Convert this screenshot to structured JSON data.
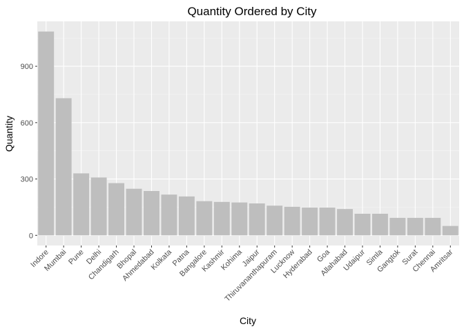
{
  "chart_data": {
    "type": "bar",
    "title": "Quantity Ordered by City",
    "xlabel": "City",
    "ylabel": "Quantity",
    "categories": [
      "Indore",
      "Mumbai",
      "Pune",
      "Delhi",
      "Chandigarh",
      "Bhopal",
      "Ahmedabad",
      "Kolkata",
      "Patna",
      "Bangalore",
      "Kashmir",
      "Kohima",
      "Jaipur",
      "Thiruvananthapuram",
      "Lucknow",
      "Hyderabad",
      "Goa",
      "Allahabad",
      "Udaipur",
      "Simla",
      "Gangtok",
      "Surat",
      "Chennai",
      "Amritsar"
    ],
    "values": [
      1085,
      730,
      330,
      308,
      278,
      248,
      236,
      217,
      207,
      182,
      178,
      175,
      170,
      158,
      152,
      148,
      148,
      140,
      115,
      115,
      93,
      93,
      93,
      50
    ],
    "yticks": [
      0,
      300,
      600,
      900
    ],
    "ylim": [
      -54,
      1139
    ],
    "grid": true,
    "colors": {
      "bar": "#bebebe",
      "panel": "#ebebeb",
      "grid_major": "#ffffff"
    }
  }
}
